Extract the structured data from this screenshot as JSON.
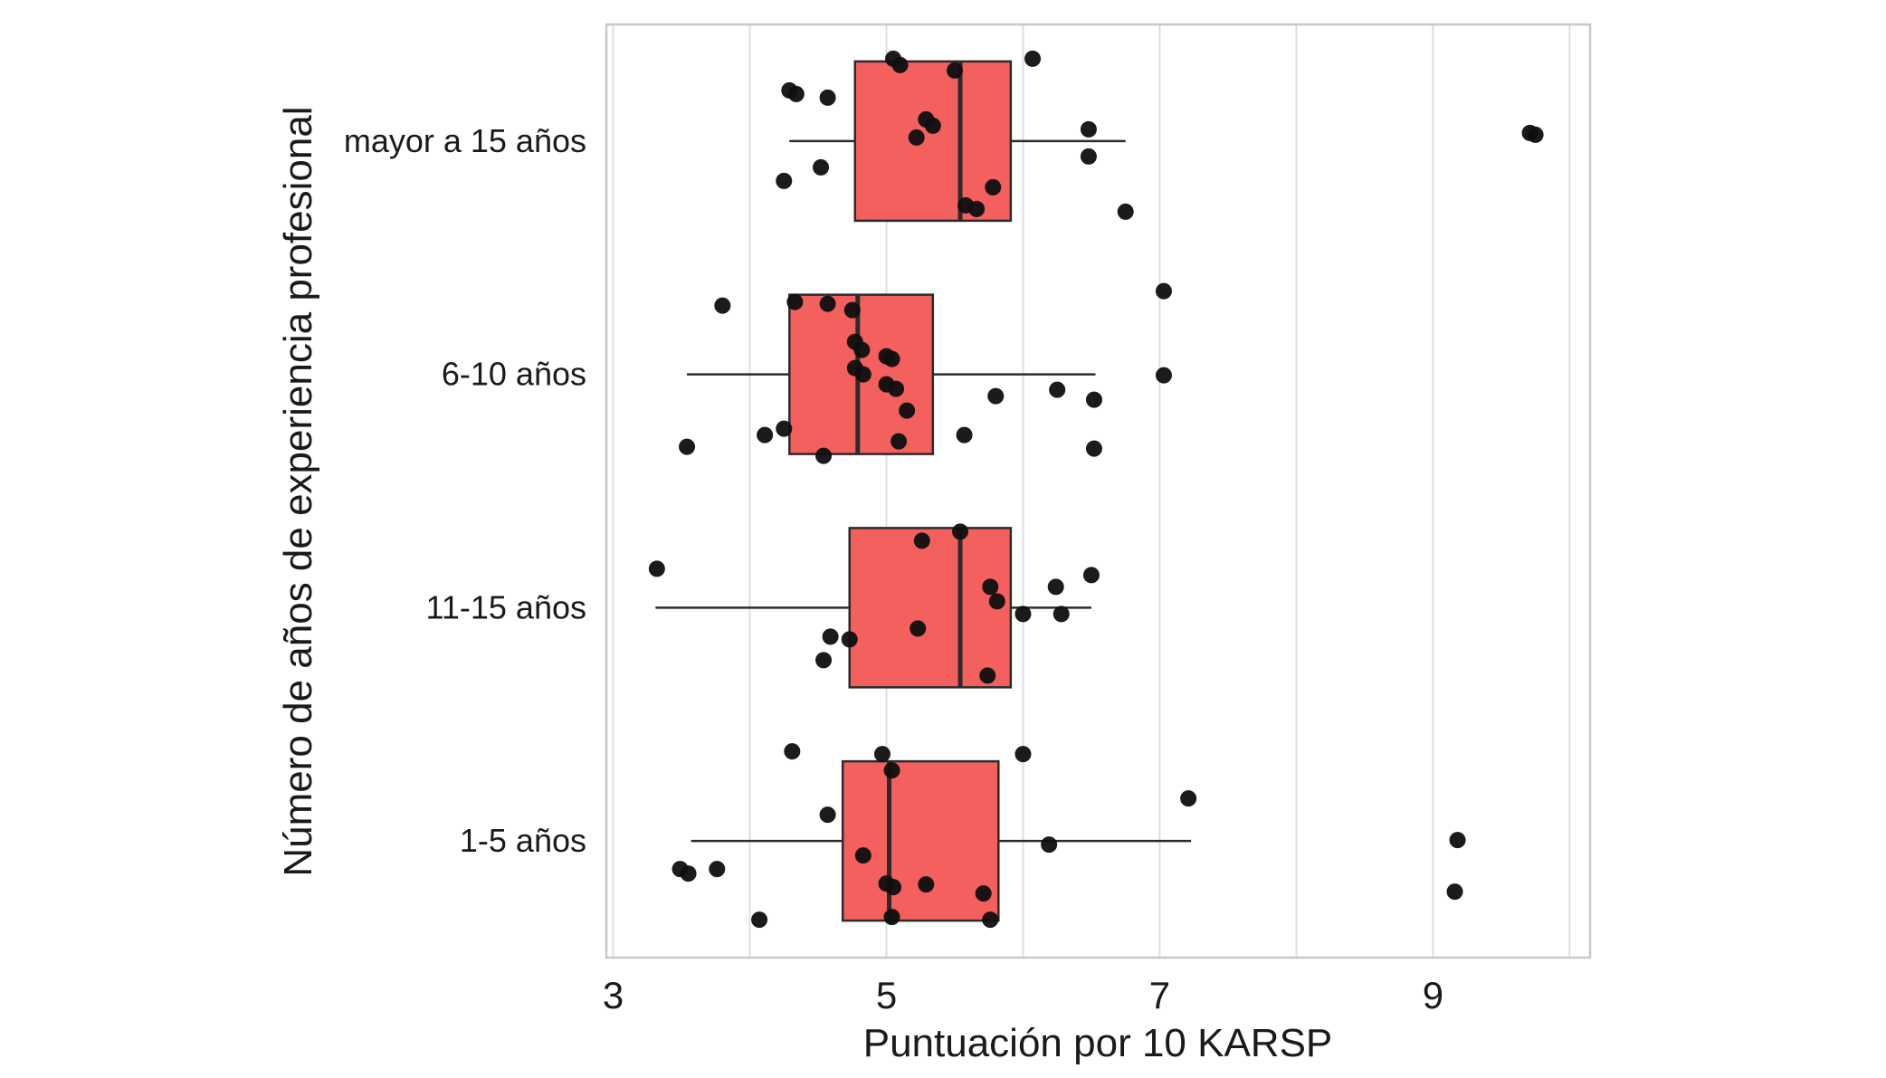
{
  "figure": {
    "background": "#ffffff"
  },
  "chart_data": {
    "type": "boxplot",
    "orientation": "horizontal",
    "title": "",
    "xlabel": "Puntuación por 10 KARSP",
    "ylabel": "Número de años de experiencia profesional",
    "xlim": [
      2.95,
      10.15
    ],
    "x_ticks": [
      3,
      5,
      7,
      9
    ],
    "x_gridlines": [
      3,
      4,
      5,
      6,
      7,
      8,
      9,
      10
    ],
    "grid_on": true,
    "legend": "none",
    "categories": [
      "mayor a 15 años",
      "6-10 años",
      "11-15 años",
      "1-5 años"
    ],
    "colors": {
      "box_fill": "#f4605e",
      "box_stroke": "#2b2b2b",
      "median": "#2b2b2b",
      "whisker": "#2b2b2b",
      "point": "#0f0f0f",
      "grid": "#dedede",
      "panel_border": "#c8c8c8",
      "tick_text": "#1a1a1a"
    },
    "series": [
      {
        "category": "mayor a 15 años",
        "whisker_low": 4.29,
        "q1": 4.77,
        "median": 5.54,
        "q3": 5.91,
        "whisker_high": 6.75,
        "outliers": [
          9.71,
          9.75
        ],
        "points": [
          [
            5.05,
            -91
          ],
          [
            5.1,
            -84
          ],
          [
            6.07,
            -91
          ],
          [
            5.5,
            -78
          ],
          [
            4.29,
            -56
          ],
          [
            4.34,
            -52
          ],
          [
            4.57,
            -48
          ],
          [
            5.29,
            -24
          ],
          [
            5.34,
            -17
          ],
          [
            5.22,
            -4
          ],
          [
            6.48,
            -13
          ],
          [
            9.71,
            -9
          ],
          [
            9.75,
            -7
          ],
          [
            4.25,
            44
          ],
          [
            4.52,
            29
          ],
          [
            6.48,
            17
          ],
          [
            5.58,
            71
          ],
          [
            5.78,
            51
          ],
          [
            5.66,
            75
          ],
          [
            6.75,
            78
          ]
        ]
      },
      {
        "category": "6-10 años",
        "whisker_low": 3.54,
        "q1": 4.29,
        "median": 4.79,
        "q3": 5.34,
        "whisker_high": 6.53,
        "outliers": [
          7.03
        ],
        "points": [
          [
            3.8,
            -76
          ],
          [
            4.33,
            -80
          ],
          [
            4.57,
            -78
          ],
          [
            4.75,
            -71
          ],
          [
            7.03,
            -92
          ],
          [
            4.77,
            -36
          ],
          [
            4.82,
            -27
          ],
          [
            5.0,
            -20
          ],
          [
            5.04,
            -17
          ],
          [
            4.77,
            -7
          ],
          [
            4.83,
            0
          ],
          [
            5.0,
            11
          ],
          [
            5.07,
            16
          ],
          [
            5.8,
            24
          ],
          [
            6.25,
            17
          ],
          [
            6.52,
            28
          ],
          [
            7.03,
            1
          ],
          [
            4.11,
            67
          ],
          [
            4.25,
            60
          ],
          [
            4.54,
            90
          ],
          [
            5.09,
            74
          ],
          [
            5.15,
            40
          ],
          [
            5.57,
            67
          ],
          [
            3.54,
            80
          ],
          [
            6.52,
            82
          ]
        ]
      },
      {
        "category": "11-15 años",
        "whisker_low": 3.31,
        "q1": 4.73,
        "median": 5.54,
        "q3": 5.91,
        "whisker_high": 6.5,
        "outliers": [],
        "points": [
          [
            5.26,
            -74
          ],
          [
            5.54,
            -84
          ],
          [
            3.32,
            -43
          ],
          [
            5.76,
            -23
          ],
          [
            5.81,
            -7
          ],
          [
            6.0,
            7
          ],
          [
            6.24,
            -23
          ],
          [
            6.5,
            -36
          ],
          [
            6.28,
            7
          ],
          [
            5.23,
            23
          ],
          [
            4.59,
            32
          ],
          [
            4.73,
            35
          ],
          [
            4.54,
            58
          ],
          [
            5.74,
            75
          ]
        ]
      },
      {
        "category": "1-5 años",
        "whisker_low": 3.57,
        "q1": 4.68,
        "median": 5.02,
        "q3": 5.82,
        "whisker_high": 7.23,
        "outliers": [
          9.16,
          9.18
        ],
        "points": [
          [
            4.31,
            -99
          ],
          [
            4.97,
            -96
          ],
          [
            6.0,
            -96
          ],
          [
            5.04,
            -78
          ],
          [
            4.57,
            -29
          ],
          [
            7.21,
            -47
          ],
          [
            6.19,
            4
          ],
          [
            4.83,
            16
          ],
          [
            3.49,
            31
          ],
          [
            3.55,
            36
          ],
          [
            3.76,
            31
          ],
          [
            5.0,
            47
          ],
          [
            5.05,
            51
          ],
          [
            5.29,
            48
          ],
          [
            5.71,
            58
          ],
          [
            9.18,
            -1
          ],
          [
            9.16,
            56
          ],
          [
            4.07,
            87
          ],
          [
            5.04,
            84
          ],
          [
            5.76,
            87
          ]
        ]
      }
    ]
  }
}
